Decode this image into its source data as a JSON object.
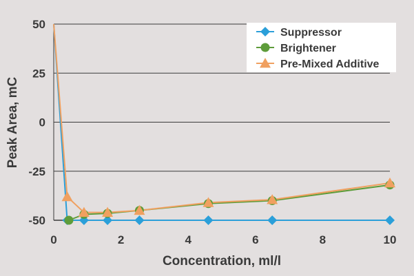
{
  "chart_data": {
    "type": "line",
    "title": "",
    "xlabel": "Concentration, ml/l",
    "ylabel": "Peak Area, mC",
    "xlim": [
      0,
      10
    ],
    "ylim": [
      -50,
      50
    ],
    "x_ticks": [
      0,
      2,
      4,
      6,
      8,
      10
    ],
    "y_ticks": [
      50,
      25,
      0,
      -25,
      -50
    ],
    "grid": "horizontal",
    "legend_position": "top-right",
    "series": [
      {
        "name": "Suppressor",
        "marker": "diamond",
        "color": "#2b9fd9",
        "x": [
          0,
          0.4,
          0.9,
          1.6,
          2.55,
          4.6,
          6.5,
          10
        ],
        "y": [
          50,
          -50,
          -50,
          -50,
          -50,
          -50,
          -50,
          -50
        ]
      },
      {
        "name": "Brightener",
        "marker": "circle",
        "color": "#5e9c3a",
        "x": [
          0.45,
          0.9,
          1.6,
          2.55,
          4.6,
          6.5,
          10
        ],
        "y": [
          -50,
          -47,
          -46.5,
          -45,
          -41.5,
          -40,
          -32
        ]
      },
      {
        "name": "Pre-Mixed Additive",
        "marker": "triangle",
        "color": "#f0a060",
        "x": [
          0,
          0.4,
          0.9,
          1.6,
          2.55,
          4.6,
          6.5,
          10
        ],
        "y": [
          50,
          -38,
          -46,
          -46,
          -45,
          -41,
          -39.5,
          -31
        ]
      }
    ]
  }
}
